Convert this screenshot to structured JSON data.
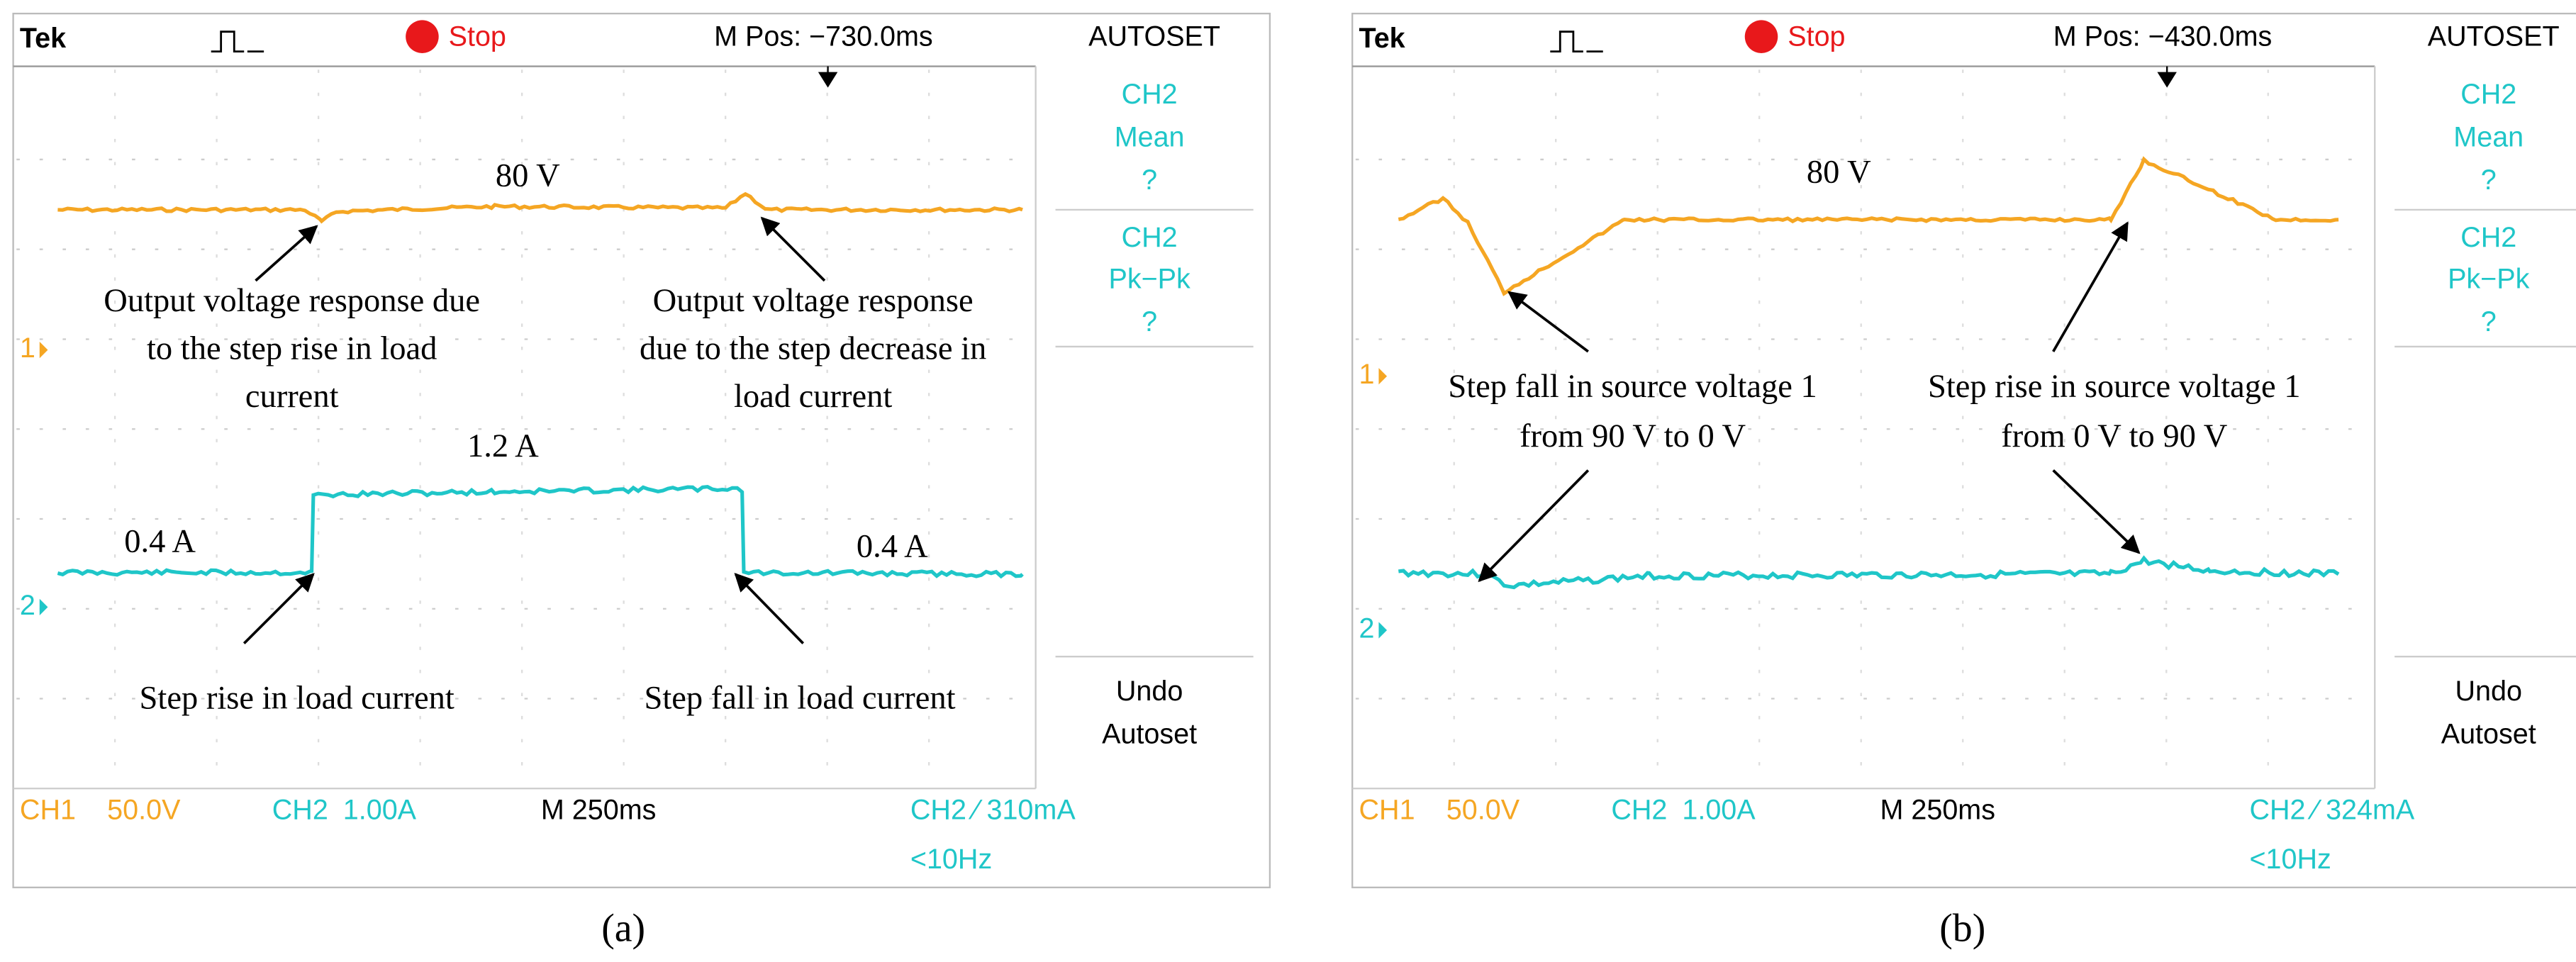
{
  "panels": [
    {
      "header": {
        "brand": "Tek",
        "status": "Stop",
        "position": "M Pos: −730.0ms",
        "menu_title": "AUTOSET"
      },
      "menu": [
        [
          "CH2",
          "Mean",
          "?"
        ],
        [
          "CH2",
          "Pk−Pk",
          "?"
        ],
        [
          "Undo",
          "Autoset"
        ]
      ],
      "markers": [
        "1",
        "2"
      ],
      "annotations": {
        "voltage": "80 V",
        "left_top": [
          "Output voltage response due",
          "to the step rise in load",
          "current"
        ],
        "right_top": [
          "Output voltage response",
          "due to the step decrease in",
          "load current"
        ],
        "current_high": "1.2 A",
        "current_left": "0.4 A",
        "current_right": "0.4 A",
        "left_bottom": "Step rise in load current",
        "right_bottom": "Step fall in load current"
      },
      "footer": {
        "ch1": "CH1",
        "ch1_scale": "50.0V",
        "ch2": "CH2",
        "ch2_scale": "1.00A",
        "timebase": "M 250ms",
        "trigger": "CH2 ⁄ 310mA",
        "trigger_freq": "<10Hz"
      },
      "caption": "(a)"
    },
    {
      "header": {
        "brand": "Tek",
        "status": "Stop",
        "position": "M Pos: −430.0ms",
        "menu_title": "AUTOSET"
      },
      "menu": [
        [
          "CH2",
          "Mean",
          "?"
        ],
        [
          "CH2",
          "Pk−Pk",
          "?"
        ],
        [
          "Undo",
          "Autoset"
        ]
      ],
      "markers": [
        "1",
        "2"
      ],
      "annotations": {
        "voltage": "80 V",
        "left": [
          "Step fall in source voltage 1",
          "from 90 V to 0 V"
        ],
        "right": [
          "Step rise in source voltage 1",
          "from 0 V to 90 V"
        ]
      },
      "footer": {
        "ch1": "CH1",
        "ch1_scale": "50.0V",
        "ch2": "CH2",
        "ch2_scale": "1.00A",
        "timebase": "M 250ms",
        "trigger": "CH2 ⁄ 324mA",
        "trigger_freq": "<10Hz"
      },
      "caption": "(b)"
    }
  ]
}
